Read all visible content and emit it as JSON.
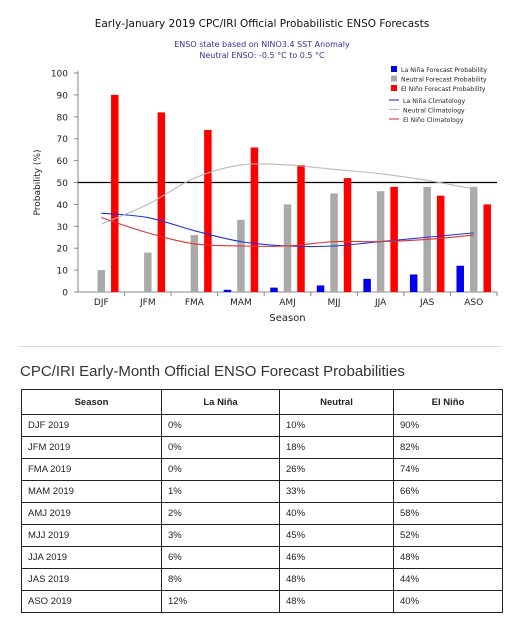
{
  "chart_data": {
    "type": "bar",
    "title": "Early-January 2019 CPC/IRI Official Probabilistic ENSO Forecasts",
    "subtitle_lines": [
      "ENSO state based on NINO3.4 SST Anomaly",
      "Neutral ENSO: -0.5 °C to 0.5 °C"
    ],
    "xlabel": "Season",
    "ylabel": "Probability (%)",
    "ylim": [
      0,
      100
    ],
    "yticks": [
      0,
      10,
      20,
      30,
      40,
      50,
      60,
      70,
      80,
      90,
      100
    ],
    "reference_line": 50,
    "categories": [
      "DJF",
      "JFM",
      "FMA",
      "MAM",
      "AMJ",
      "MJJ",
      "JJA",
      "JAS",
      "ASO"
    ],
    "series": [
      {
        "name": "La Niña Forecast Probability",
        "kind": "bar",
        "color": "#0000ee",
        "values": [
          0,
          0,
          0,
          1,
          2,
          3,
          6,
          8,
          12
        ]
      },
      {
        "name": "Neutral Forecast Probability",
        "kind": "bar",
        "color": "#aaaaaa",
        "values": [
          10,
          18,
          26,
          33,
          40,
          45,
          46,
          48,
          48
        ]
      },
      {
        "name": "El Niño Forecast Probability",
        "kind": "bar",
        "color": "#ff0000",
        "values": [
          90,
          82,
          74,
          66,
          58,
          52,
          48,
          44,
          40
        ]
      },
      {
        "name": "La Niña Climatology",
        "kind": "line",
        "color": "#2233dd",
        "values": [
          36,
          34,
          28,
          23,
          21,
          21,
          23,
          25,
          27
        ]
      },
      {
        "name": "Neutral Climatology",
        "kind": "line",
        "color": "#b8b8b8",
        "values": [
          31,
          40,
          52,
          58,
          58,
          56,
          54,
          51,
          47
        ]
      },
      {
        "name": "El Niño Climatology",
        "kind": "line",
        "color": "#dd3333",
        "values": [
          34,
          27,
          22,
          21,
          21,
          23,
          23,
          24,
          26
        ]
      }
    ],
    "legend_position": "top-right"
  },
  "table": {
    "title": "CPC/IRI Early-Month Official ENSO Forecast Probabilities",
    "headers": [
      "Season",
      "La Niña",
      "Neutral",
      "El Niño"
    ],
    "rows": [
      [
        "DJF 2019",
        "0%",
        "10%",
        "90%"
      ],
      [
        "JFM 2019",
        "0%",
        "18%",
        "82%"
      ],
      [
        "FMA 2019",
        "0%",
        "26%",
        "74%"
      ],
      [
        "MAM 2019",
        "1%",
        "33%",
        "66%"
      ],
      [
        "AMJ 2019",
        "2%",
        "40%",
        "58%"
      ],
      [
        "MJJ 2019",
        "3%",
        "45%",
        "52%"
      ],
      [
        "JJA 2019",
        "6%",
        "46%",
        "48%"
      ],
      [
        "JAS 2019",
        "8%",
        "48%",
        "44%"
      ],
      [
        "ASO 2019",
        "12%",
        "48%",
        "40%"
      ]
    ]
  }
}
